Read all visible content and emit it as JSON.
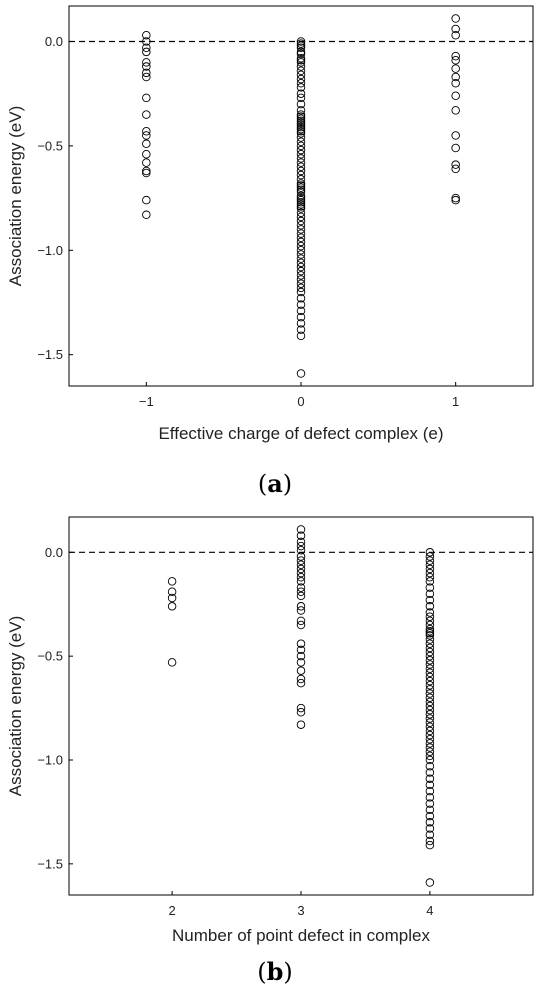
{
  "chart_data": [
    {
      "type": "scatter",
      "panel_label": {
        "open": "(",
        "letter": "a",
        "close": ")"
      },
      "xlabel": "Effective charge of defect complex (e)",
      "ylabel": "Association energy (eV)",
      "xlim": [
        -1.5,
        1.5
      ],
      "ylim": [
        -1.65,
        0.17
      ],
      "xticks": [
        -1,
        0,
        1
      ],
      "xtick_labels": [
        "−1",
        "0",
        "1"
      ],
      "yticks": [
        0.0,
        -0.5,
        -1.0,
        -1.5
      ],
      "ytick_labels": [
        "0.0",
        "−0.5",
        "−1.0",
        "−1.5"
      ],
      "reference_line_y": 0.0,
      "grid": false,
      "marker": "open-circle",
      "series": [
        {
          "x": -1,
          "y": [
            0.03,
            0.0,
            -0.03,
            -0.05,
            -0.1,
            -0.12,
            -0.15,
            -0.17,
            -0.27,
            -0.35,
            -0.43,
            -0.45,
            -0.49,
            -0.54,
            -0.58,
            -0.62,
            -0.63,
            -0.76,
            -0.83
          ]
        },
        {
          "x": 0,
          "y": [
            0.0,
            -0.01,
            -0.02,
            -0.03,
            -0.05,
            -0.06,
            -0.08,
            -0.09,
            -0.1,
            -0.12,
            -0.14,
            -0.16,
            -0.18,
            -0.2,
            -0.22,
            -0.25,
            -0.27,
            -0.3,
            -0.33,
            -0.35,
            -0.36,
            -0.37,
            -0.38,
            -0.39,
            -0.4,
            -0.41,
            -0.42,
            -0.43,
            -0.44,
            -0.46,
            -0.48,
            -0.5,
            -0.52,
            -0.54,
            -0.56,
            -0.58,
            -0.6,
            -0.62,
            -0.64,
            -0.66,
            -0.68,
            -0.69,
            -0.7,
            -0.71,
            -0.72,
            -0.74,
            -0.75,
            -0.76,
            -0.77,
            -0.78,
            -0.79,
            -0.8,
            -0.82,
            -0.84,
            -0.86,
            -0.88,
            -0.9,
            -0.92,
            -0.94,
            -0.96,
            -0.98,
            -1.0,
            -1.02,
            -1.04,
            -1.06,
            -1.08,
            -1.1,
            -1.12,
            -1.14,
            -1.16,
            -1.18,
            -1.2,
            -1.23,
            -1.26,
            -1.29,
            -1.32,
            -1.35,
            -1.38,
            -1.41,
            -1.59
          ]
        },
        {
          "x": 1,
          "y": [
            0.11,
            0.06,
            0.03,
            -0.07,
            -0.09,
            -0.13,
            -0.17,
            -0.2,
            -0.26,
            -0.33,
            -0.45,
            -0.51,
            -0.59,
            -0.61,
            -0.75,
            -0.76
          ]
        }
      ]
    },
    {
      "type": "scatter",
      "panel_label": {
        "open": "(",
        "letter": "b",
        "close": ")"
      },
      "xlabel": "Number of point defect in complex",
      "ylabel": "Association energy (eV)",
      "xlim": [
        1.2,
        4.8
      ],
      "ylim": [
        -1.65,
        0.17
      ],
      "xticks": [
        2,
        3,
        4
      ],
      "xtick_labels": [
        "2",
        "3",
        "4"
      ],
      "yticks": [
        0.0,
        -0.5,
        -1.0,
        -1.5
      ],
      "ytick_labels": [
        "0.0",
        "−0.5",
        "−1.0",
        "−1.5"
      ],
      "reference_line_y": 0.0,
      "grid": false,
      "marker": "open-circle",
      "series": [
        {
          "x": 2,
          "y": [
            -0.14,
            -0.19,
            -0.22,
            -0.26,
            -0.53
          ]
        },
        {
          "x": 3,
          "y": [
            0.11,
            0.08,
            0.05,
            0.03,
            0.01,
            -0.02,
            -0.04,
            -0.06,
            -0.08,
            -0.1,
            -0.12,
            -0.14,
            -0.17,
            -0.19,
            -0.21,
            -0.26,
            -0.28,
            -0.33,
            -0.35,
            -0.44,
            -0.47,
            -0.5,
            -0.53,
            -0.57,
            -0.61,
            -0.63,
            -0.75,
            -0.77,
            -0.83
          ]
        },
        {
          "x": 4,
          "y": [
            0.0,
            -0.02,
            -0.04,
            -0.06,
            -0.08,
            -0.1,
            -0.12,
            -0.14,
            -0.17,
            -0.2,
            -0.23,
            -0.26,
            -0.29,
            -0.31,
            -0.33,
            -0.35,
            -0.37,
            -0.38,
            -0.39,
            -0.4,
            -0.42,
            -0.44,
            -0.46,
            -0.48,
            -0.5,
            -0.52,
            -0.54,
            -0.56,
            -0.58,
            -0.6,
            -0.62,
            -0.64,
            -0.66,
            -0.68,
            -0.7,
            -0.72,
            -0.74,
            -0.76,
            -0.78,
            -0.8,
            -0.82,
            -0.84,
            -0.86,
            -0.88,
            -0.9,
            -0.92,
            -0.94,
            -0.96,
            -0.98,
            -1.0,
            -1.03,
            -1.06,
            -1.09,
            -1.12,
            -1.15,
            -1.18,
            -1.21,
            -1.24,
            -1.27,
            -1.3,
            -1.33,
            -1.36,
            -1.39,
            -1.41,
            -1.59
          ]
        }
      ]
    }
  ]
}
